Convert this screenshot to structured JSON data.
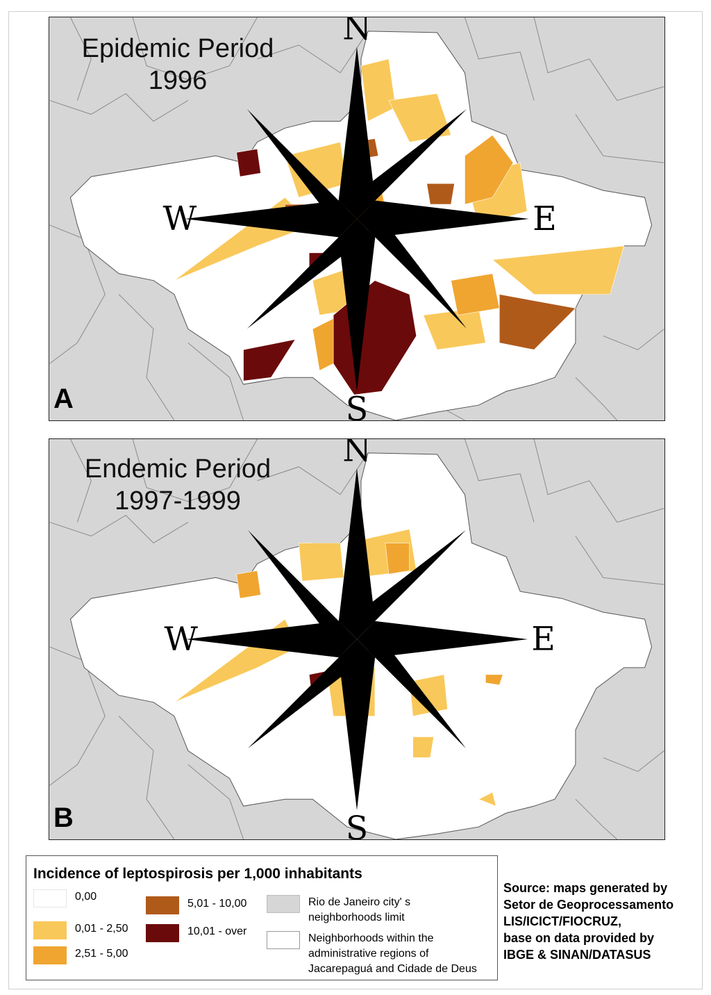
{
  "panels": [
    {
      "id": "A",
      "title_line1": "Epidemic Period",
      "title_line2": "1996"
    },
    {
      "id": "B",
      "title_line1": "Endemic Period",
      "title_line2": "1997-1999"
    }
  ],
  "compass": {
    "n": "N",
    "s": "S",
    "e": "E",
    "w": "W"
  },
  "legend": {
    "title": "Incidence of leptospirosis per 1,000 inhabitants",
    "classes": [
      {
        "label": "0,00",
        "color": "#ffffff"
      },
      {
        "label": "0,01 - 2,50",
        "color": "#f9c85a"
      },
      {
        "label": "2,51 - 5,00",
        "color": "#f0a531"
      },
      {
        "label": "5,01 - 10,00",
        "color": "#b05a1a"
      },
      {
        "label": "10,01 - over",
        "color": "#6b0a0a"
      }
    ],
    "boundaries": [
      {
        "label_line1": "Rio de Janeiro city' s",
        "label_line2": "neighborhoods limit",
        "color": "#d6d6d6"
      },
      {
        "label_line1": "Neighborhoods within the",
        "label_line2": "administrative regions of",
        "label_line3": "Jacarepaguá and Cidade de Deus",
        "color": "#ffffff"
      }
    ]
  },
  "source": {
    "line1": "Source: maps generated by",
    "line2": "Setor de Geoprocessamento",
    "line3": "LIS/ICICT/FIOCRUZ,",
    "line4": "base on data provided by",
    "line5": "IBGE & SINAN/DATASUS"
  }
}
